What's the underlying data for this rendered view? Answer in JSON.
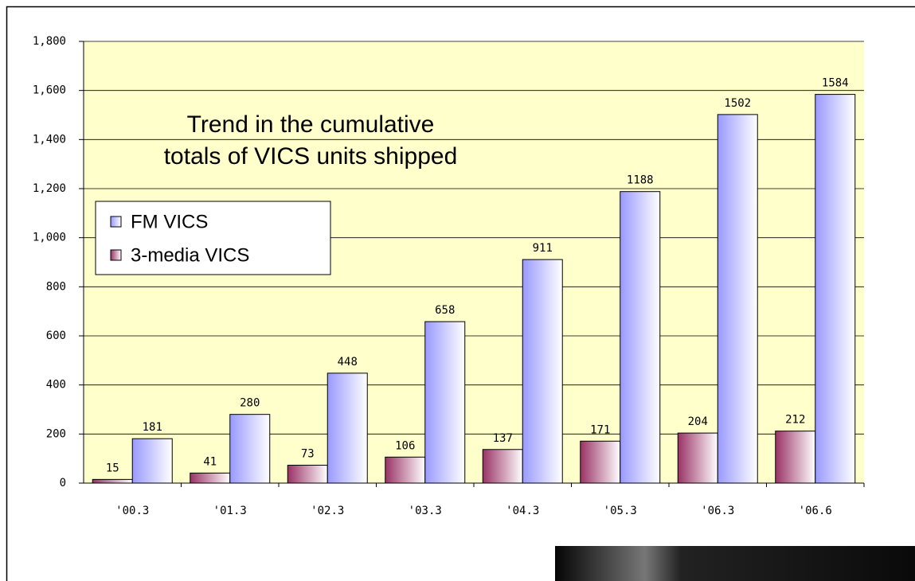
{
  "chart_data": {
    "type": "bar",
    "title_lines": [
      "Trend in the cumulative",
      "totals of VICS units shipped"
    ],
    "categories": [
      "'00.3",
      "'01.3",
      "'02.3",
      "'03.3",
      "'04.3",
      "'05.3",
      "'06.3",
      "'06.6"
    ],
    "series": [
      {
        "name": "3-media VICS",
        "color": "#993366",
        "values": [
          15,
          41,
          73,
          106,
          137,
          171,
          204,
          212
        ]
      },
      {
        "name": "FM VICS",
        "color": "#9999ff",
        "values": [
          181,
          280,
          448,
          658,
          911,
          1188,
          1502,
          1584
        ]
      }
    ],
    "legend_order": [
      1,
      0
    ],
    "ylim": [
      0,
      1800
    ],
    "yticks": [
      0,
      200,
      400,
      600,
      800,
      {
        "value": 1000,
        "label": "1,000"
      },
      {
        "value": 1200,
        "label": "1,200"
      },
      {
        "value": 1400,
        "label": "1,400"
      },
      {
        "value": 1600,
        "label": "1,600"
      },
      {
        "value": 1800,
        "label": "1,800"
      }
    ],
    "grid": true,
    "legend": "left",
    "plot_background": "#ffffcc"
  }
}
